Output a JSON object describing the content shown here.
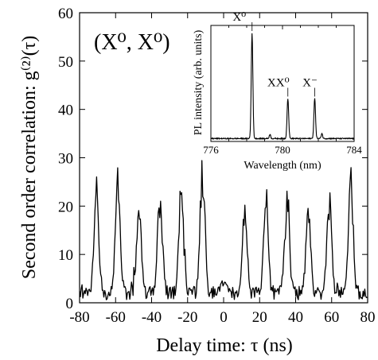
{
  "chart_data": [
    {
      "type": "line",
      "title": "",
      "annotation": "(X⁰, X⁰)",
      "xlabel": "Delay time: τ (ns)",
      "ylabel": "Second order correlation: g⁽²⁾(τ)",
      "xlim": [
        -80,
        80
      ],
      "ylim": [
        0,
        60
      ],
      "xticks": [
        -80,
        -60,
        -40,
        -20,
        0,
        20,
        40,
        60,
        80
      ],
      "yticks": [
        0,
        10,
        20,
        30,
        40,
        50,
        60
      ],
      "grid": false,
      "background_level": 2,
      "peaks": [
        {
          "x": -70.6,
          "y": 22
        },
        {
          "x": -58.8,
          "y": 24
        },
        {
          "x": -47.1,
          "y": 18
        },
        {
          "x": -35.3,
          "y": 22
        },
        {
          "x": -23.5,
          "y": 24
        },
        {
          "x": -11.8,
          "y": 27
        },
        {
          "x": 0,
          "y": 2
        },
        {
          "x": 11.8,
          "y": 17
        },
        {
          "x": 23.5,
          "y": 21
        },
        {
          "x": 35.3,
          "y": 21
        },
        {
          "x": 47.1,
          "y": 19
        },
        {
          "x": 58.8,
          "y": 19
        },
        {
          "x": 70.6,
          "y": 24
        }
      ],
      "color": "#000000"
    },
    {
      "type": "line",
      "role": "inset",
      "title": "",
      "xlabel": "Wavelength (nm)",
      "ylabel": "PL intensity (arb. units)",
      "xlim": [
        776,
        784
      ],
      "xticks": [
        776,
        780,
        784
      ],
      "peaks": [
        {
          "x": 778.3,
          "y": 1.0,
          "label": "X⁰"
        },
        {
          "x": 780.3,
          "y": 0.38,
          "label": "XX⁰"
        },
        {
          "x": 781.8,
          "y": 0.38,
          "label": "X⁻"
        }
      ],
      "color": "#000000"
    }
  ]
}
